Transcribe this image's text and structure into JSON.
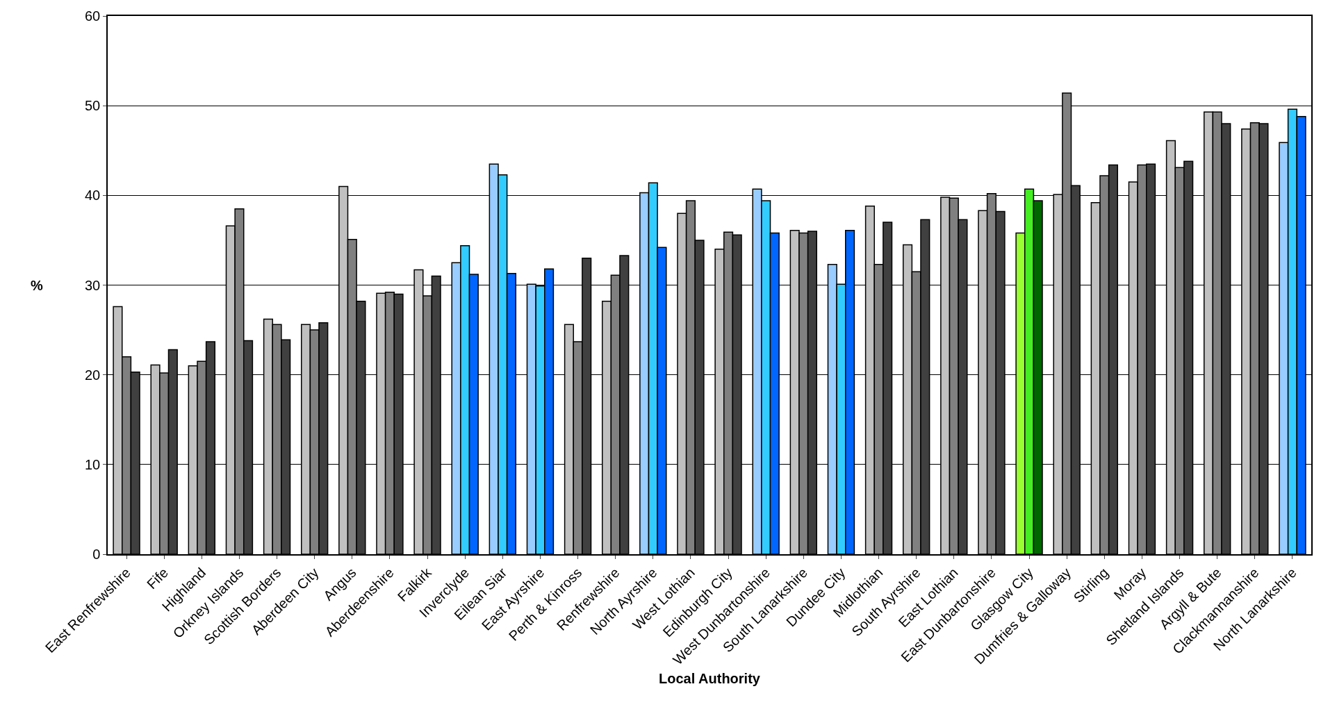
{
  "chart_data": {
    "type": "bar",
    "xlabel": "Local Authority",
    "ylabel": "%",
    "categories": [
      "East Renfrewshire",
      "Fife",
      "Highland",
      "Orkney Islands",
      "Scottish Borders",
      "Aberdeen City",
      "Angus",
      "Aberdeenshire",
      "Falkirk",
      "Inverclyde",
      "Eilean Siar",
      "East Ayrshire",
      "Perth & Kinross",
      "Renfrewshire",
      "North Ayrshire",
      "West Lothian",
      "Edinburgh City",
      "West Dunbartonshire",
      "South Lanarkshire",
      "Dundee City",
      "Midlothian",
      "South Ayrshire",
      "East Lothian",
      "East Dunbartonshire",
      "Glasgow City",
      "Dumfries & Galloway",
      "Stirling",
      "Moray",
      "Shetland Islands",
      "Argyll & Bute",
      "Clackmannanshire",
      "North Lanarkshire"
    ],
    "series": [
      {
        "colors": [
          "#c0c0c0",
          "#c0c0c0",
          "#c0c0c0",
          "#c0c0c0",
          "#c0c0c0",
          "#c0c0c0",
          "#c0c0c0",
          "#c0c0c0",
          "#c0c0c0",
          "#99ccff",
          "#99ccff",
          "#99ccff",
          "#c0c0c0",
          "#c0c0c0",
          "#99ccff",
          "#c0c0c0",
          "#c0c0c0",
          "#99ccff",
          "#c0c0c0",
          "#99ccff",
          "#c0c0c0",
          "#c0c0c0",
          "#c0c0c0",
          "#c0c0c0",
          "#99ff33",
          "#c0c0c0",
          "#c0c0c0",
          "#c0c0c0",
          "#c0c0c0",
          "#c0c0c0",
          "#c0c0c0",
          "#99ccff"
        ],
        "values": [
          27.6,
          21.1,
          21.0,
          36.6,
          26.2,
          25.6,
          41.0,
          29.1,
          31.7,
          32.5,
          43.5,
          30.1,
          25.6,
          28.2,
          40.3,
          38.0,
          34.0,
          40.7,
          36.1,
          32.3,
          38.8,
          34.5,
          39.8,
          38.3,
          35.8,
          40.1,
          39.2,
          41.5,
          46.1,
          49.3,
          47.4,
          45.9
        ]
      },
      {
        "colors": [
          "#808080",
          "#808080",
          "#808080",
          "#808080",
          "#808080",
          "#808080",
          "#808080",
          "#808080",
          "#808080",
          "#33ccff",
          "#33ccff",
          "#33ccff",
          "#808080",
          "#808080",
          "#33ccff",
          "#808080",
          "#808080",
          "#33ccff",
          "#808080",
          "#33ccff",
          "#808080",
          "#808080",
          "#808080",
          "#808080",
          "#44ee22",
          "#808080",
          "#808080",
          "#808080",
          "#808080",
          "#808080",
          "#808080",
          "#33ccff"
        ],
        "values": [
          22.0,
          20.2,
          21.5,
          38.5,
          25.6,
          25.0,
          35.1,
          29.2,
          28.8,
          34.4,
          42.3,
          29.9,
          23.7,
          31.1,
          41.4,
          39.4,
          35.9,
          39.4,
          35.8,
          30.1,
          32.3,
          31.5,
          39.7,
          40.2,
          40.7,
          51.4,
          42.2,
          43.4,
          43.1,
          49.3,
          48.1,
          49.6
        ]
      },
      {
        "colors": [
          "#404040",
          "#404040",
          "#404040",
          "#404040",
          "#404040",
          "#404040",
          "#404040",
          "#404040",
          "#404040",
          "#0066ff",
          "#0066ff",
          "#0066ff",
          "#404040",
          "#404040",
          "#0066ff",
          "#404040",
          "#404040",
          "#0066ff",
          "#404040",
          "#0066ff",
          "#404040",
          "#404040",
          "#404040",
          "#404040",
          "#006600",
          "#404040",
          "#404040",
          "#404040",
          "#404040",
          "#404040",
          "#404040",
          "#0066ff"
        ],
        "values": [
          20.3,
          22.8,
          23.7,
          23.8,
          23.9,
          25.8,
          28.2,
          29.0,
          31.0,
          31.2,
          31.3,
          31.8,
          33.0,
          33.3,
          34.2,
          35.0,
          35.6,
          35.8,
          36.0,
          36.1,
          37.0,
          37.3,
          37.3,
          38.2,
          39.4,
          41.1,
          43.4,
          43.5,
          43.8,
          48.0,
          48.0,
          48.8
        ]
      }
    ],
    "ylim": [
      0,
      60
    ],
    "yticks": [
      0,
      10,
      20,
      30,
      40,
      50,
      60
    ],
    "grid": "y"
  }
}
